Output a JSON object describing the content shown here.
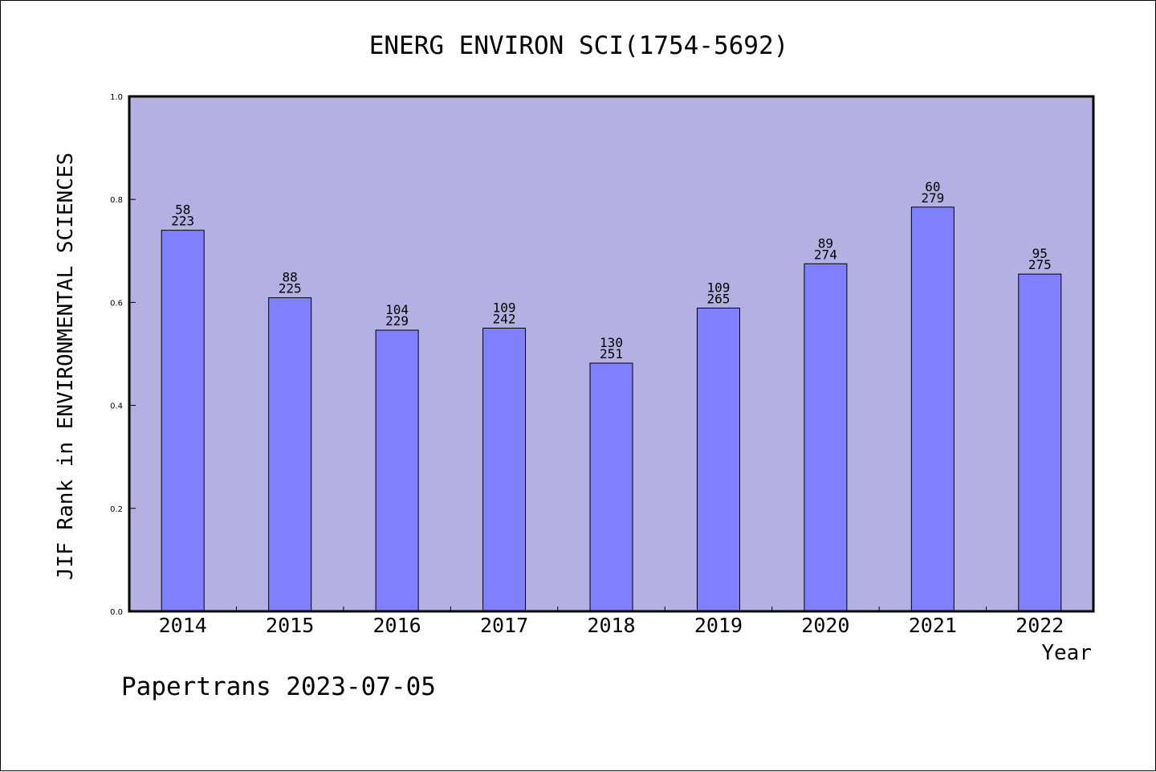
{
  "chart_data": {
    "type": "bar",
    "title": "ENERG ENVIRON SCI(1754-5692)",
    "xlabel": "Year",
    "ylabel": "JIF Rank in ENVIRONMENTAL SCIENCES",
    "ylim": [
      0,
      1.0
    ],
    "yticks": [
      "0.0",
      "0.2",
      "0.4",
      "0.6",
      "0.8",
      "1.0"
    ],
    "categories": [
      "2014",
      "2015",
      "2016",
      "2017",
      "2018",
      "2019",
      "2020",
      "2021",
      "2022"
    ],
    "values": [
      0.74,
      0.609,
      0.546,
      0.55,
      0.482,
      0.589,
      0.675,
      0.785,
      0.655
    ],
    "rank": [
      "58",
      "88",
      "104",
      "109",
      "130",
      "109",
      "89",
      "60",
      "95"
    ],
    "total": [
      "223",
      "225",
      "229",
      "242",
      "251",
      "265",
      "274",
      "279",
      "275"
    ],
    "grid": false,
    "colors": {
      "plot_bg": "#b5b0e2",
      "bar": "#8080ff",
      "bar_edge": "#000000"
    }
  },
  "footer": {
    "text": "Papertrans 2023-07-05"
  }
}
